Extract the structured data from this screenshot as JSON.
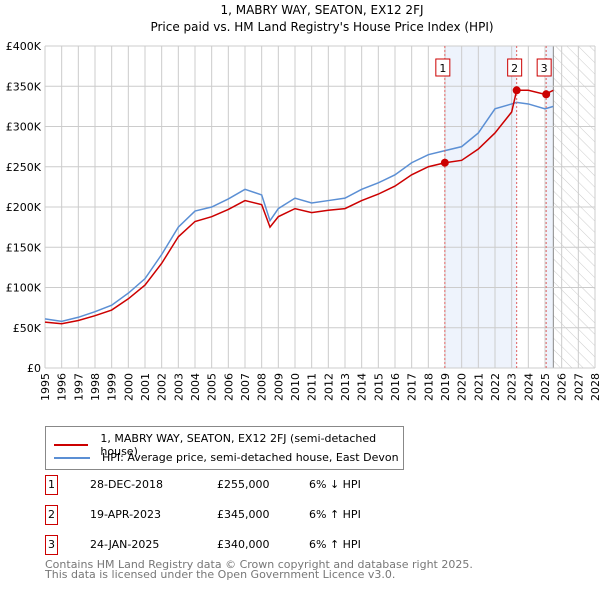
{
  "chart_data": {
    "type": "line",
    "title": "1, MABRY WAY, SEATON, EX12 2FJ",
    "subtitle": "Price paid vs. HM Land Registry's House Price Index (HPI)",
    "xlim": [
      1995,
      2028
    ],
    "ylim": [
      0,
      400000
    ],
    "x_ticks": [
      "1995",
      "1996",
      "1997",
      "1998",
      "1999",
      "2000",
      "2001",
      "2002",
      "2003",
      "2004",
      "2005",
      "2006",
      "2007",
      "2008",
      "2009",
      "2010",
      "2011",
      "2012",
      "2013",
      "2014",
      "2015",
      "2016",
      "2017",
      "2018",
      "2019",
      "2020",
      "2021",
      "2022",
      "2023",
      "2024",
      "2025",
      "2026",
      "2027",
      "2028"
    ],
    "y_ticks": [
      "£0",
      "£50K",
      "£100K",
      "£150K",
      "£200K",
      "£250K",
      "£300K",
      "£350K",
      "£400K"
    ],
    "grid": true,
    "x": [
      1995,
      1996,
      1997,
      1998,
      1999,
      2000,
      2001,
      2002,
      2003,
      2004,
      2005,
      2006,
      2007,
      2008,
      2008.5,
      2009,
      2010,
      2011,
      2012,
      2013,
      2014,
      2015,
      2016,
      2017,
      2018,
      2019,
      2020,
      2021,
      2022,
      2023,
      2023.3,
      2024,
      2025,
      2025.5
    ],
    "series": [
      {
        "name": "1, MABRY WAY, SEATON, EX12 2FJ (semi-detached house)",
        "color": "#cc0000",
        "values": [
          57000,
          55000,
          59000,
          65000,
          72000,
          86000,
          103000,
          130000,
          163000,
          182000,
          188000,
          197000,
          208000,
          203000,
          175000,
          188000,
          198000,
          193000,
          196000,
          198000,
          208000,
          216000,
          226000,
          240000,
          250000,
          255000,
          258000,
          272000,
          292000,
          318000,
          345000,
          345000,
          340000,
          345000
        ]
      },
      {
        "name": "HPI: Average price, semi-detached house, East Devon",
        "color": "#5b8fd4",
        "values": [
          61000,
          58000,
          63000,
          70000,
          78000,
          93000,
          111000,
          141000,
          175000,
          195000,
          200000,
          210000,
          222000,
          215000,
          183000,
          198000,
          211000,
          205000,
          208000,
          211000,
          222000,
          230000,
          240000,
          255000,
          265000,
          270000,
          275000,
          292000,
          322000,
          328000,
          330000,
          328000,
          322000,
          325000
        ]
      }
    ],
    "sales": [
      {
        "label": "1",
        "x": 2018.99,
        "y": 255000
      },
      {
        "label": "2",
        "x": 2023.3,
        "y": 345000
      },
      {
        "label": "3",
        "x": 2025.07,
        "y": 340000
      }
    ],
    "legend": "below"
  },
  "table": [
    {
      "num": "1",
      "date": "28-DEC-2018",
      "price": "£255,000",
      "hpi": "6% ↓ HPI"
    },
    {
      "num": "2",
      "date": "19-APR-2023",
      "price": "£345,000",
      "hpi": "6% ↑ HPI"
    },
    {
      "num": "3",
      "date": "24-JAN-2025",
      "price": "£340,000",
      "hpi": "6% ↑ HPI"
    }
  ],
  "footer": [
    "Contains HM Land Registry data © Crown copyright and database right 2025.",
    "This data is licensed under the Open Government Licence v3.0."
  ]
}
